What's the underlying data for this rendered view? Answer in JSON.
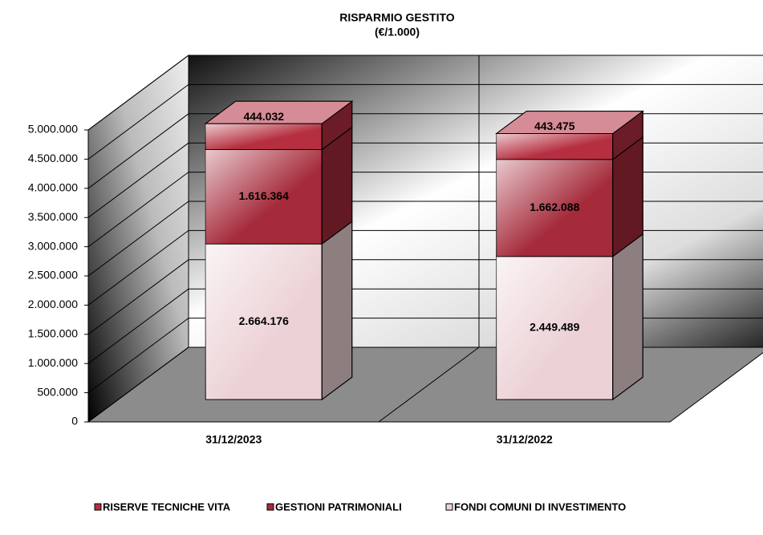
{
  "chart_data": {
    "type": "bar3d_stacked",
    "title": "RISPARMIO GESTITO",
    "subtitle": "(€/1.000)",
    "categories": [
      "31/12/2023",
      "31/12/2022"
    ],
    "series": [
      {
        "name": "RISERVE TECNICHE VITA",
        "color": "#b52f40",
        "values": [
          444032,
          443475
        ],
        "value_labels": [
          "444.032",
          "443.475"
        ]
      },
      {
        "name": "GESTIONI PATRIMONIALI",
        "color": "#a52a3a",
        "values": [
          1616364,
          1662088
        ],
        "value_labels": [
          "1.616.364",
          "1.662.088"
        ]
      },
      {
        "name": "FONDI COMUNI DI INVESTIMENTO",
        "color": "#ecd2d6",
        "values": [
          2664176,
          2449489
        ],
        "value_labels": [
          "2.664.176",
          "2.449.489"
        ]
      }
    ],
    "ylim": [
      0,
      5000000
    ],
    "yticks": [
      {
        "value": 0,
        "label": "0"
      },
      {
        "value": 500000,
        "label": "500.000"
      },
      {
        "value": 1000000,
        "label": "1.000.000"
      },
      {
        "value": 1500000,
        "label": "1.500.000"
      },
      {
        "value": 2000000,
        "label": "2.000.000"
      },
      {
        "value": 2500000,
        "label": "2.500.000"
      },
      {
        "value": 3000000,
        "label": "3.000.000"
      },
      {
        "value": 3500000,
        "label": "3.500.000"
      },
      {
        "value": 4000000,
        "label": "4.000.000"
      },
      {
        "value": 4500000,
        "label": "4.500.000"
      },
      {
        "value": 5000000,
        "label": "5.000.000"
      }
    ],
    "grid": true,
    "legend": "bottom"
  }
}
